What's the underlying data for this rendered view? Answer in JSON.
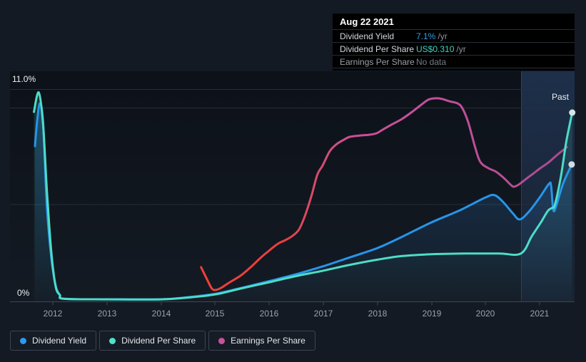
{
  "page": {
    "background": "#141a23",
    "accent_blue": "#2795e9",
    "accent_teal": "#4edcc7",
    "accent_pink": "#c9519c"
  },
  "tooltip": {
    "date": "Aug 22 2021",
    "rows": [
      {
        "label": "Dividend Yield",
        "value": "7.1%",
        "suffix": " /yr",
        "value_color": "#2f9fe8",
        "muted": false
      },
      {
        "label": "Dividend Per Share",
        "value": "US$0.310",
        "suffix": " /yr",
        "value_color": "#40d1bd",
        "muted": false
      },
      {
        "label": "Earnings Per Share",
        "value": "No data",
        "suffix": "",
        "value_color": "#757c86",
        "muted": true
      }
    ]
  },
  "legend": [
    {
      "label": "Dividend Yield",
      "color": "#2b9af0"
    },
    {
      "label": "Dividend Per Share",
      "color": "#4fe0ca"
    },
    {
      "label": "Earnings Per Share",
      "color": "#c9519c"
    }
  ],
  "chart_data": {
    "type": "line",
    "title": "",
    "past_label": "Past",
    "past_region_start_year": 2020.65,
    "x_axis": {
      "unit": "year",
      "range": [
        2011.6,
        2021.65
      ],
      "tick_labels": [
        "2012",
        "2013",
        "2014",
        "2015",
        "2016",
        "2017",
        "2018",
        "2019",
        "2020",
        "2021"
      ]
    },
    "y_axis": {
      "unit": "percent (dividend-yield axis)",
      "range": [
        0,
        11
      ],
      "top_label": "11.0%",
      "zero_label": "0%",
      "gridline_values_percent": [
        11.0,
        10.0,
        5.0,
        0
      ]
    },
    "series": [
      {
        "name": "Dividend Yield",
        "unit": "%",
        "color": "#2795e9",
        "area_fill": true,
        "end_dot": true,
        "points": [
          [
            2011.67,
            8.05
          ],
          [
            2011.71,
            9.34
          ],
          [
            2011.76,
            10.26
          ],
          [
            2011.82,
            9.27
          ],
          [
            2011.89,
            4.92
          ],
          [
            2011.97,
            2.34
          ],
          [
            2012.05,
            0.87
          ],
          [
            2012.13,
            0.35
          ],
          [
            2012.21,
            0.15
          ],
          [
            2013.0,
            0.13
          ],
          [
            2014.0,
            0.13
          ],
          [
            2014.51,
            0.24
          ],
          [
            2015.0,
            0.41
          ],
          [
            2015.49,
            0.72
          ],
          [
            2016.0,
            1.07
          ],
          [
            2016.49,
            1.42
          ],
          [
            2017.0,
            1.84
          ],
          [
            2017.46,
            2.27
          ],
          [
            2018.0,
            2.78
          ],
          [
            2018.46,
            3.37
          ],
          [
            2019.0,
            4.11
          ],
          [
            2019.53,
            4.74
          ],
          [
            2020.0,
            5.4
          ],
          [
            2020.17,
            5.51
          ],
          [
            2020.33,
            5.14
          ],
          [
            2020.51,
            4.55
          ],
          [
            2020.63,
            4.26
          ],
          [
            2020.8,
            4.66
          ],
          [
            2021.0,
            5.4
          ],
          [
            2021.17,
            6.1
          ],
          [
            2021.21,
            5.99
          ],
          [
            2021.25,
            4.77
          ],
          [
            2021.3,
            4.92
          ],
          [
            2021.43,
            6.1
          ],
          [
            2021.59,
            7.1
          ]
        ]
      },
      {
        "name": "Dividend Per Share",
        "unit": "US$",
        "color": "#4edcc7",
        "area_fill": true,
        "end_dot": true,
        "points": [
          [
            2011.65,
            0.311
          ],
          [
            2011.74,
            0.343
          ],
          [
            2011.82,
            0.29
          ],
          [
            2011.89,
            0.182
          ],
          [
            2011.97,
            0.084
          ],
          [
            2012.05,
            0.026
          ],
          [
            2012.13,
            0.011
          ],
          [
            2012.21,
            0.005
          ],
          [
            2013.0,
            0.004
          ],
          [
            2014.0,
            0.004
          ],
          [
            2014.51,
            0.007
          ],
          [
            2015.0,
            0.012
          ],
          [
            2015.49,
            0.022
          ],
          [
            2016.0,
            0.032
          ],
          [
            2016.49,
            0.042
          ],
          [
            2017.0,
            0.051
          ],
          [
            2017.46,
            0.06
          ],
          [
            2018.0,
            0.069
          ],
          [
            2018.46,
            0.075
          ],
          [
            2019.0,
            0.078
          ],
          [
            2019.6,
            0.079
          ],
          [
            2020.25,
            0.079
          ],
          [
            2020.65,
            0.079
          ],
          [
            2020.85,
            0.107
          ],
          [
            2021.02,
            0.13
          ],
          [
            2021.15,
            0.149
          ],
          [
            2021.23,
            0.154
          ],
          [
            2021.28,
            0.159
          ],
          [
            2021.39,
            0.205
          ],
          [
            2021.49,
            0.262
          ],
          [
            2021.6,
            0.31
          ]
        ]
      },
      {
        "name": "Earnings Per Share",
        "unit": "relative (no scale shown, red-to-pink gradient line)",
        "color": "#c9519c",
        "area_fill": false,
        "end_dot": false,
        "points": [
          [
            2014.74,
            1.79
          ],
          [
            2014.85,
            1.16
          ],
          [
            2014.94,
            0.68
          ],
          [
            2015.01,
            0.61
          ],
          [
            2015.11,
            0.72
          ],
          [
            2015.27,
            1.01
          ],
          [
            2015.47,
            1.35
          ],
          [
            2015.67,
            1.82
          ],
          [
            2015.85,
            2.3
          ],
          [
            2016.0,
            2.65
          ],
          [
            2016.16,
            3.0
          ],
          [
            2016.3,
            3.19
          ],
          [
            2016.43,
            3.41
          ],
          [
            2016.55,
            3.74
          ],
          [
            2016.66,
            4.44
          ],
          [
            2016.78,
            5.47
          ],
          [
            2016.89,
            6.58
          ],
          [
            2016.99,
            7.06
          ],
          [
            2017.12,
            7.79
          ],
          [
            2017.25,
            8.16
          ],
          [
            2017.38,
            8.38
          ],
          [
            2017.49,
            8.53
          ],
          [
            2017.69,
            8.6
          ],
          [
            2017.86,
            8.64
          ],
          [
            2017.99,
            8.72
          ],
          [
            2018.12,
            8.94
          ],
          [
            2018.28,
            9.19
          ],
          [
            2018.45,
            9.45
          ],
          [
            2018.64,
            9.82
          ],
          [
            2018.81,
            10.19
          ],
          [
            2018.94,
            10.45
          ],
          [
            2019.05,
            10.52
          ],
          [
            2019.18,
            10.5
          ],
          [
            2019.33,
            10.37
          ],
          [
            2019.48,
            10.26
          ],
          [
            2019.57,
            10.01
          ],
          [
            2019.68,
            9.27
          ],
          [
            2019.8,
            8.05
          ],
          [
            2019.9,
            7.24
          ],
          [
            2020.05,
            6.91
          ],
          [
            2020.19,
            6.73
          ],
          [
            2020.34,
            6.39
          ],
          [
            2020.46,
            6.06
          ],
          [
            2020.52,
            5.95
          ],
          [
            2020.61,
            6.06
          ],
          [
            2020.75,
            6.36
          ],
          [
            2020.89,
            6.65
          ],
          [
            2021.01,
            6.91
          ],
          [
            2021.16,
            7.2
          ],
          [
            2021.31,
            7.57
          ],
          [
            2021.5,
            8.0
          ]
        ]
      }
    ]
  }
}
